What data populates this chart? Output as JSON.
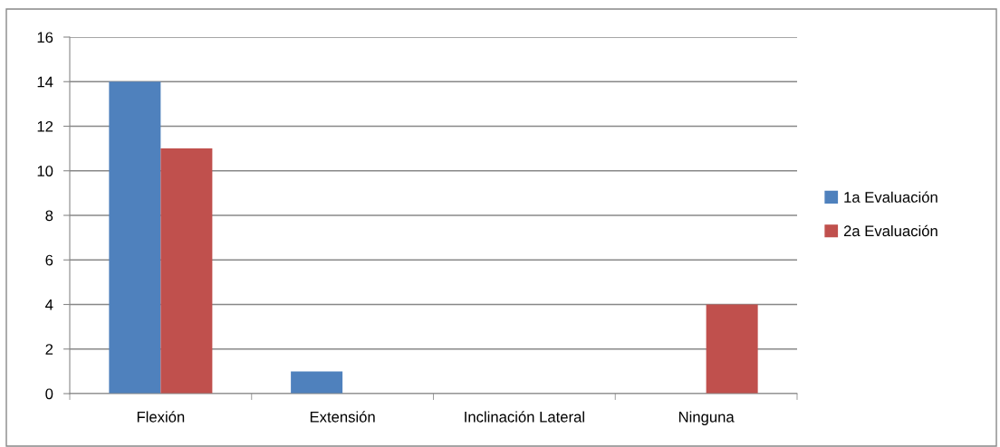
{
  "chart_data": {
    "type": "bar",
    "categories": [
      "Flexión",
      "Extensión",
      "Inclinación Lateral",
      "Ninguna"
    ],
    "series": [
      {
        "name": "1a Evaluación",
        "color": "#4f81bd",
        "values": [
          14,
          1,
          0,
          0
        ]
      },
      {
        "name": "2a Evaluación",
        "color": "#c0504d",
        "values": [
          11,
          0,
          0,
          4
        ]
      }
    ],
    "ylim": [
      0,
      16
    ],
    "yticks": [
      0,
      2,
      4,
      6,
      8,
      10,
      12,
      14,
      16
    ],
    "grid": "y",
    "legend": "right"
  }
}
